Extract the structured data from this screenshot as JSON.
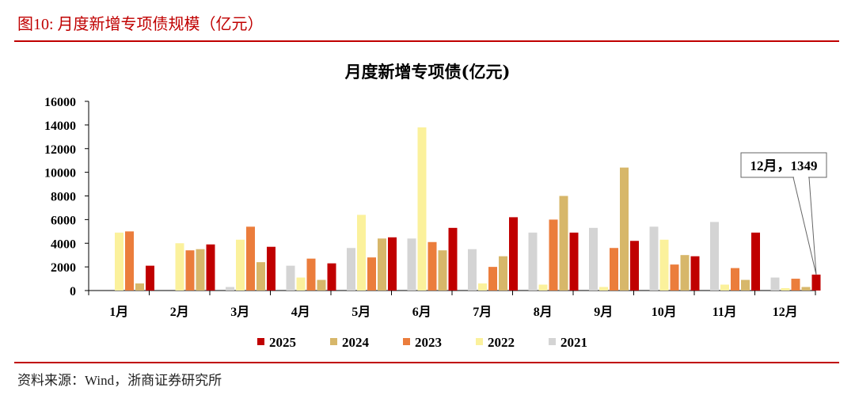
{
  "figure_title": "图10:  月度新增专项债规模（亿元）",
  "source": "资料来源：Wind，浙商证券研究所",
  "colors": {
    "accent": "#c00000",
    "series": {
      "2025": "#c00000",
      "2024": "#d7b76a",
      "2023": "#eb7d3c",
      "2022": "#fbf19c",
      "2021": "#d4d4d4"
    }
  },
  "chart_data": {
    "type": "bar",
    "title": "月度新增专项债(亿元)",
    "categories": [
      "1月",
      "2月",
      "3月",
      "4月",
      "5月",
      "6月",
      "7月",
      "8月",
      "9月",
      "10月",
      "11月",
      "12月"
    ],
    "ylim": [
      0,
      16000
    ],
    "yticks": [
      0,
      2000,
      4000,
      6000,
      8000,
      10000,
      12000,
      14000,
      16000
    ],
    "series_order": [
      "2021",
      "2022",
      "2023",
      "2024",
      "2025"
    ],
    "legend_order": [
      "2025",
      "2024",
      "2023",
      "2022",
      "2021"
    ],
    "legend_position": "bottom",
    "series": [
      {
        "name": "2021",
        "values": [
          0,
          0,
          300,
          2100,
          3600,
          4400,
          3500,
          4900,
          5300,
          5400,
          5800,
          1100
        ]
      },
      {
        "name": "2022",
        "values": [
          4900,
          4000,
          4300,
          1100,
          6400,
          13800,
          600,
          500,
          300,
          4300,
          500,
          200
        ]
      },
      {
        "name": "2023",
        "values": [
          5000,
          3400,
          5400,
          2700,
          2800,
          4100,
          2000,
          6000,
          3600,
          2200,
          1900,
          1000
        ]
      },
      {
        "name": "2024",
        "values": [
          600,
          3500,
          2400,
          900,
          4400,
          3400,
          2900,
          8000,
          10400,
          3000,
          900,
          300
        ]
      },
      {
        "name": "2025",
        "values": [
          2100,
          3900,
          3700,
          2300,
          4500,
          5300,
          6200,
          4900,
          4200,
          2900,
          4900,
          1349
        ]
      }
    ],
    "annotation": {
      "text": "12月，1349",
      "category": "12月",
      "series": "2025",
      "value": 1349
    }
  }
}
